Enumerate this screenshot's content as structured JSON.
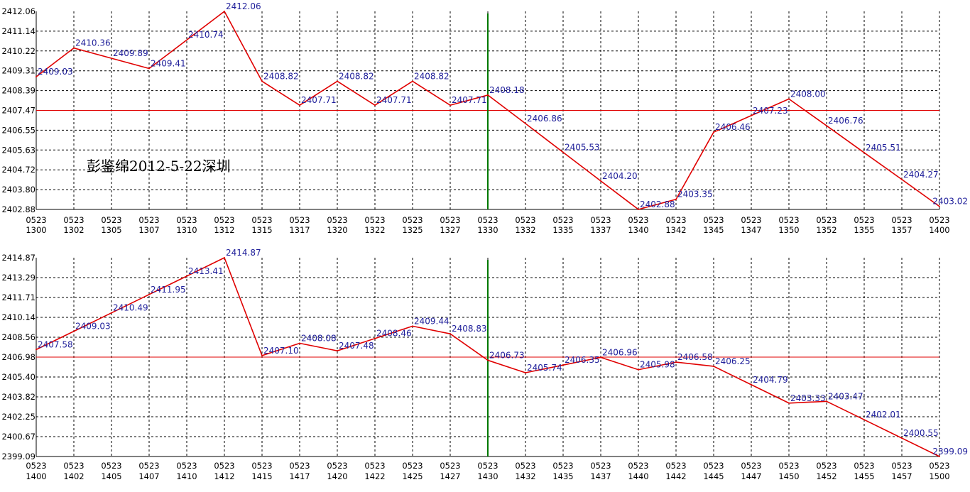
{
  "colors": {
    "line": "#e00000",
    "refline": "#e00000",
    "divider": "#007700",
    "grid": "#000000",
    "labels": "#1f1f9a"
  },
  "chart_data": [
    {
      "type": "line",
      "annotation": "彭鉴绵2012-5-22深圳",
      "grid": true,
      "ylim": [
        2402.88,
        2412.06
      ],
      "yticks": [
        "2412.06",
        "2411.14",
        "2410.22",
        "2409.31",
        "2408.39",
        "2407.47",
        "2406.55",
        "2405.63",
        "2404.72",
        "2403.80",
        "2402.88"
      ],
      "xticks": [
        [
          "0523",
          "1300"
        ],
        [
          "0523",
          "1302"
        ],
        [
          "0523",
          "1305"
        ],
        [
          "0523",
          "1307"
        ],
        [
          "0523",
          "1310"
        ],
        [
          "0523",
          "1312"
        ],
        [
          "0523",
          "1315"
        ],
        [
          "0523",
          "1317"
        ],
        [
          "0523",
          "1320"
        ],
        [
          "0523",
          "1322"
        ],
        [
          "0523",
          "1325"
        ],
        [
          "0523",
          "1327"
        ],
        [
          "0523",
          "1330"
        ],
        [
          "0523",
          "1332"
        ],
        [
          "0523",
          "1335"
        ],
        [
          "0523",
          "1337"
        ],
        [
          "0523",
          "1340"
        ],
        [
          "0523",
          "1342"
        ],
        [
          "0523",
          "1345"
        ],
        [
          "0523",
          "1347"
        ],
        [
          "0523",
          "1350"
        ],
        [
          "0523",
          "1352"
        ],
        [
          "0523",
          "1355"
        ],
        [
          "0523",
          "1357"
        ],
        [
          "0523",
          "1400"
        ]
      ],
      "reference_y": 2407.47,
      "divider_x": "1330",
      "points": [
        {
          "x": "1300",
          "y": 2409.03
        },
        {
          "x": "1302",
          "y": 2410.36
        },
        {
          "x": "1307",
          "y": 2409.41
        },
        {
          "x": "1312",
          "y": 2412.06
        },
        {
          "x": "1315",
          "y": 2408.82
        },
        {
          "x": "1317",
          "y": 2407.71
        },
        {
          "x": "1320",
          "y": 2408.82
        },
        {
          "x": "1322",
          "y": 2407.71
        },
        {
          "x": "1325",
          "y": 2408.82
        },
        {
          "x": "1327",
          "y": 2407.71
        },
        {
          "x": "1330",
          "y": 2408.18
        },
        {
          "x": "1332",
          "y": 2406.86
        },
        {
          "x": "1335",
          "y": 2405.53
        },
        {
          "x": "1337",
          "y": 2404.2
        },
        {
          "x": "1340",
          "y": 2402.88
        },
        {
          "x": "1342",
          "y": 2403.35
        },
        {
          "x": "1345",
          "y": 2406.46
        },
        {
          "x": "1347",
          "y": 2407.23
        },
        {
          "x": "1350",
          "y": 2408.0
        },
        {
          "x": "1352",
          "y": 2406.76
        },
        {
          "x": "1355",
          "y": 2405.51
        },
        {
          "x": "1357",
          "y": 2404.27
        },
        {
          "x": "1400",
          "y": 2403.02
        }
      ],
      "labels": [
        {
          "x": "1300",
          "text": "2409.03"
        },
        {
          "x": "1302",
          "text": "2410.36"
        },
        {
          "x": "1305",
          "text": "2409.89"
        },
        {
          "x": "1307",
          "text": "2409.41"
        },
        {
          "x": "1310",
          "text": "2410.74"
        },
        {
          "x": "1312",
          "text": "2412.06"
        },
        {
          "x": "1315",
          "text": "2408.82"
        },
        {
          "x": "1317",
          "text": "2407.71"
        },
        {
          "x": "1320",
          "text": "2408.82"
        },
        {
          "x": "1322",
          "text": "2407.71"
        },
        {
          "x": "1325",
          "text": "2408.82"
        },
        {
          "x": "1327",
          "text": "2407.71"
        },
        {
          "x": "1330",
          "text": "2408.18"
        },
        {
          "x": "1332",
          "text": "2406.86"
        },
        {
          "x": "1335",
          "text": "2405.53"
        },
        {
          "x": "1337",
          "text": "2404.20"
        },
        {
          "x": "1340",
          "text": "2402.88"
        },
        {
          "x": "1342",
          "text": "2403.35"
        },
        {
          "x": "1345",
          "text": "2406.46"
        },
        {
          "x": "1347",
          "text": "2407.23"
        },
        {
          "x": "1350",
          "text": "2408.00"
        },
        {
          "x": "1352",
          "text": "2406.76"
        },
        {
          "x": "1355",
          "text": "2405.51"
        },
        {
          "x": "1357",
          "text": "2404.27"
        },
        {
          "x": "1400",
          "text": "2403.02"
        }
      ]
    },
    {
      "type": "line",
      "grid": true,
      "ylim": [
        2399.09,
        2414.87
      ],
      "yticks": [
        "2414.87",
        "2413.29",
        "2411.71",
        "2410.14",
        "2408.56",
        "2406.98",
        "2405.40",
        "2403.82",
        "2402.25",
        "2400.67",
        "2399.09"
      ],
      "xticks": [
        [
          "0523",
          "1400"
        ],
        [
          "0523",
          "1402"
        ],
        [
          "0523",
          "1405"
        ],
        [
          "0523",
          "1407"
        ],
        [
          "0523",
          "1410"
        ],
        [
          "0523",
          "1412"
        ],
        [
          "0523",
          "1415"
        ],
        [
          "0523",
          "1417"
        ],
        [
          "0523",
          "1420"
        ],
        [
          "0523",
          "1422"
        ],
        [
          "0523",
          "1425"
        ],
        [
          "0523",
          "1427"
        ],
        [
          "0523",
          "1430"
        ],
        [
          "0523",
          "1432"
        ],
        [
          "0523",
          "1435"
        ],
        [
          "0523",
          "1437"
        ],
        [
          "0523",
          "1440"
        ],
        [
          "0523",
          "1442"
        ],
        [
          "0523",
          "1445"
        ],
        [
          "0523",
          "1447"
        ],
        [
          "0523",
          "1450"
        ],
        [
          "0523",
          "1452"
        ],
        [
          "0523",
          "1455"
        ],
        [
          "0523",
          "1457"
        ],
        [
          "0523",
          "1500"
        ]
      ],
      "reference_y": 2406.98,
      "divider_x": "1430",
      "points": [
        {
          "x": "1400",
          "y": 2407.58
        },
        {
          "x": "1402",
          "y": 2409.03
        },
        {
          "x": "1405",
          "y": 2410.49
        },
        {
          "x": "1407",
          "y": 2411.95
        },
        {
          "x": "1410",
          "y": 2413.41
        },
        {
          "x": "1412",
          "y": 2414.87
        },
        {
          "x": "1415",
          "y": 2407.1
        },
        {
          "x": "1417",
          "y": 2408.08
        },
        {
          "x": "1420",
          "y": 2407.48
        },
        {
          "x": "1422",
          "y": 2408.46
        },
        {
          "x": "1425",
          "y": 2409.44
        },
        {
          "x": "1427",
          "y": 2408.83
        },
        {
          "x": "1430",
          "y": 2406.73
        },
        {
          "x": "1432",
          "y": 2405.74
        },
        {
          "x": "1435",
          "y": 2406.35
        },
        {
          "x": "1437",
          "y": 2406.96
        },
        {
          "x": "1440",
          "y": 2405.98
        },
        {
          "x": "1442",
          "y": 2406.58
        },
        {
          "x": "1445",
          "y": 2406.25
        },
        {
          "x": "1447",
          "y": 2404.79
        },
        {
          "x": "1450",
          "y": 2403.33
        },
        {
          "x": "1452",
          "y": 2403.47
        },
        {
          "x": "1455",
          "y": 2402.01
        },
        {
          "x": "1457",
          "y": 2400.55
        },
        {
          "x": "1500",
          "y": 2399.09
        }
      ],
      "labels": [
        {
          "x": "1400",
          "text": "2407.58"
        },
        {
          "x": "1402",
          "text": "2409.03"
        },
        {
          "x": "1405",
          "text": "2410.49"
        },
        {
          "x": "1407",
          "text": "2411.95"
        },
        {
          "x": "1410",
          "text": "2413.41"
        },
        {
          "x": "1412",
          "text": "2414.87"
        },
        {
          "x": "1415",
          "text": "2407.10"
        },
        {
          "x": "1417",
          "text": "2408.08"
        },
        {
          "x": "1420",
          "text": "2407.48"
        },
        {
          "x": "1422",
          "text": "2408.46"
        },
        {
          "x": "1425",
          "text": "2409.44"
        },
        {
          "x": "1427",
          "text": "2408.83"
        },
        {
          "x": "1430",
          "text": "2406.73"
        },
        {
          "x": "1432",
          "text": "2405.74"
        },
        {
          "x": "1435",
          "text": "2406.35"
        },
        {
          "x": "1437",
          "text": "2406.96"
        },
        {
          "x": "1440",
          "text": "2405.98"
        },
        {
          "x": "1442",
          "text": "2406.58"
        },
        {
          "x": "1445",
          "text": "2406.25"
        },
        {
          "x": "1447",
          "text": "2404.79"
        },
        {
          "x": "1450",
          "text": "2403.33"
        },
        {
          "x": "1452",
          "text": "2403.47"
        },
        {
          "x": "1455",
          "text": "2402.01"
        },
        {
          "x": "1457",
          "text": "2400.55"
        },
        {
          "x": "1500",
          "text": "2399.09"
        }
      ]
    }
  ]
}
